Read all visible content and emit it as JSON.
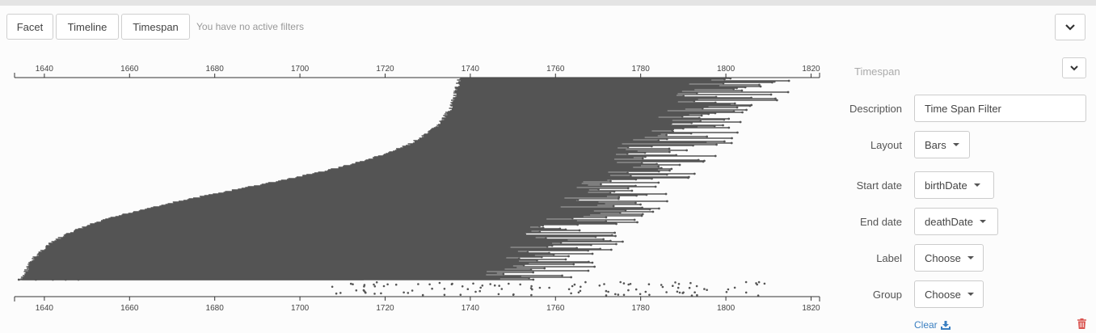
{
  "toolbar": {
    "facet_label": "Facet",
    "timeline_label": "Timeline",
    "timespan_label": "Timespan",
    "filters_message": "You have no active filters"
  },
  "chart_data": {
    "type": "timespan",
    "axis_ticks": [
      "1640",
      "1660",
      "1680",
      "1700",
      "1720",
      "1740",
      "1760",
      "1780",
      "1800",
      "1820"
    ],
    "x_range": [
      1633,
      1822
    ],
    "layout": "bars",
    "start_field": "birthDate",
    "end_field": "deathDate"
  },
  "settings": {
    "section_title": "Timespan",
    "description_label": "Description",
    "description_value": "Time Span Filter",
    "layout_label": "Layout",
    "layout_value": "Bars",
    "start_label": "Start date",
    "start_value": "birthDate",
    "end_label": "End date",
    "end_value": "deathDate",
    "label_label": "Label",
    "label_value": "Choose",
    "group_label": "Group",
    "group_value": "Choose",
    "clear_label": "Clear"
  },
  "icons": {
    "collapse": "chevron-down-icon",
    "download": "download-icon",
    "trash": "trash-icon"
  },
  "colors": {
    "bars": "#555555",
    "link": "#3a7fc1",
    "danger": "#d9534f"
  }
}
